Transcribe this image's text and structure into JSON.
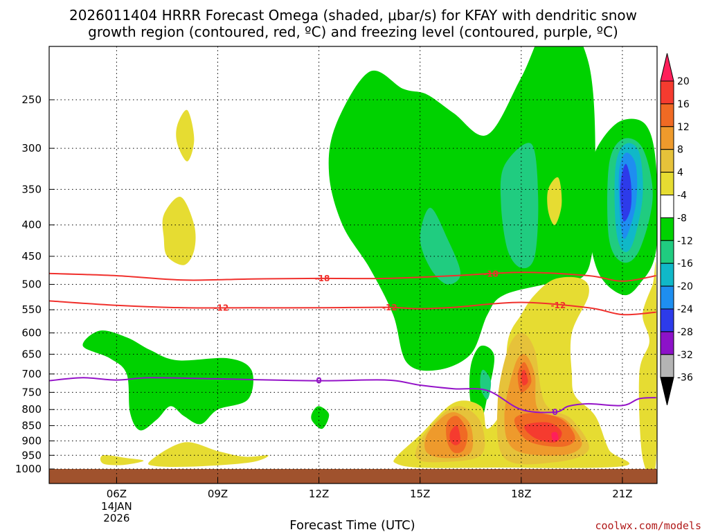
{
  "chart_data": {
    "type": "time-height contour",
    "title_lines": [
      "2026011404 HRRR Forecast Omega (shaded, μbar/s) for KFAY with dendritic snow",
      "growth region (contoured, red, ºC) and freezing level (contoured, purple, ºC)"
    ],
    "xlabel": "Forecast Time (UTC)",
    "x_ticks": [
      {
        "hour": 6,
        "label": "06Z",
        "sub": [
          "14JAN",
          "2026"
        ]
      },
      {
        "hour": 9,
        "label": "09Z"
      },
      {
        "hour": 12,
        "label": "12Z"
      },
      {
        "hour": 15,
        "label": "15Z"
      },
      {
        "hour": 18,
        "label": "18Z"
      },
      {
        "hour": 21,
        "label": "21Z"
      }
    ],
    "xlim": [
      4,
      22
    ],
    "y_ticks": [
      250,
      300,
      350,
      400,
      450,
      500,
      550,
      600,
      650,
      700,
      750,
      800,
      850,
      900,
      950,
      1000
    ],
    "ylim_hPa": [
      1015,
      200
    ],
    "grid": true,
    "colorbar": {
      "levels": [
        "20",
        "16",
        "12",
        "8",
        "4",
        "-4",
        "-8",
        "-12",
        "-16",
        "-20",
        "-24",
        "-28",
        "-32",
        "-36"
      ],
      "colors": [
        "#ff1f5a",
        "#f53b2f",
        "#f06a24",
        "#ee9a2c",
        "#e6c23a",
        "#e6dc32",
        "#ffffff",
        "#00d200",
        "#20cc80",
        "#10b8c8",
        "#1e8ef0",
        "#2d3bea",
        "#8c12c8",
        "#b4b4b4",
        "#000000"
      ]
    },
    "dgz_contours": [
      {
        "value": -18,
        "label": "-18",
        "color": "#f0302c",
        "points": [
          [
            4,
            480
          ],
          [
            6,
            484
          ],
          [
            8,
            492
          ],
          [
            10,
            490
          ],
          [
            12,
            489
          ],
          [
            14,
            489
          ],
          [
            16,
            484
          ],
          [
            18,
            478
          ],
          [
            20,
            484
          ],
          [
            21,
            494
          ],
          [
            22,
            484
          ]
        ]
      },
      {
        "value": -12,
        "label": "-12",
        "color": "#f0302c",
        "points": [
          [
            4,
            532
          ],
          [
            6,
            541
          ],
          [
            8,
            546
          ],
          [
            10,
            546
          ],
          [
            12,
            546
          ],
          [
            14,
            545
          ],
          [
            15,
            548
          ],
          [
            16,
            545
          ],
          [
            18,
            535
          ],
          [
            20,
            546
          ],
          [
            21,
            560
          ],
          [
            22,
            555
          ]
        ]
      }
    ],
    "freezing_level": {
      "value": 0,
      "label": "0",
      "color": "#9412c8",
      "points": [
        [
          4,
          718
        ],
        [
          5,
          710
        ],
        [
          6,
          716
        ],
        [
          7,
          710
        ],
        [
          9,
          713
        ],
        [
          12,
          718
        ],
        [
          14,
          716
        ],
        [
          15,
          730
        ],
        [
          16,
          740
        ],
        [
          17,
          745
        ],
        [
          18,
          800
        ],
        [
          19,
          808
        ],
        [
          19.4,
          790
        ],
        [
          20,
          783
        ],
        [
          21,
          788
        ],
        [
          21.5,
          768
        ],
        [
          22,
          765
        ]
      ]
    },
    "omega_regions": [
      {
        "color": "#00d200",
        "points": [
          [
            16,
            263
          ],
          [
            17,
            285
          ],
          [
            18,
            230
          ],
          [
            19,
            180
          ],
          [
            20,
            218
          ],
          [
            20.2,
            330
          ],
          [
            20,
            470
          ],
          [
            19,
            495
          ],
          [
            17.5,
            520
          ],
          [
            17,
            560
          ],
          [
            16.5,
            650
          ],
          [
            15.5,
            690
          ],
          [
            14.6,
            670
          ],
          [
            14.2,
            560
          ],
          [
            13.5,
            470
          ],
          [
            12.7,
            400
          ],
          [
            12.3,
            330
          ],
          [
            12.5,
            275
          ],
          [
            13.5,
            225
          ],
          [
            14.5,
            240
          ],
          [
            15.2,
            245
          ]
        ]
      },
      {
        "color": "#00d200",
        "points": [
          [
            20.4,
            290
          ],
          [
            21,
            270
          ],
          [
            21.7,
            275
          ],
          [
            22,
            320
          ],
          [
            22,
            440
          ],
          [
            21.5,
            500
          ],
          [
            21,
            520
          ],
          [
            20.3,
            480
          ],
          [
            20,
            400
          ],
          [
            20.1,
            320
          ]
        ]
      },
      {
        "color": "#00d200",
        "points": [
          [
            16.8,
            630
          ],
          [
            17.2,
            655
          ],
          [
            17.0,
            760
          ],
          [
            16.8,
            830
          ],
          [
            16.5,
            780
          ],
          [
            16.5,
            680
          ]
        ]
      },
      {
        "color": "#00d200",
        "points": [
          [
            5.0,
            630
          ],
          [
            5.5,
            595
          ],
          [
            6.3,
            610
          ],
          [
            7.0,
            640
          ],
          [
            7.8,
            665
          ],
          [
            9.3,
            660
          ],
          [
            10.0,
            690
          ],
          [
            9.9,
            770
          ],
          [
            9.0,
            800
          ],
          [
            8.5,
            845
          ],
          [
            8.0,
            820
          ],
          [
            7.6,
            790
          ],
          [
            7.2,
            830
          ],
          [
            6.7,
            865
          ],
          [
            6.4,
            810
          ],
          [
            6.3,
            700
          ],
          [
            5.8,
            660
          ]
        ]
      },
      {
        "color": "#00d200",
        "points": [
          [
            12.0,
            790
          ],
          [
            12.3,
            815
          ],
          [
            12.1,
            860
          ],
          [
            11.8,
            835
          ],
          [
            11.8,
            810
          ]
        ]
      },
      {
        "color": "#20cc80",
        "points": [
          [
            15.3,
            375
          ],
          [
            15.8,
            420
          ],
          [
            16.2,
            480
          ],
          [
            15.8,
            500
          ],
          [
            15.3,
            470
          ],
          [
            15.0,
            420
          ]
        ]
      },
      {
        "color": "#20cc80",
        "points": [
          [
            16.9,
            690
          ],
          [
            17.1,
            720
          ],
          [
            17.0,
            770
          ],
          [
            16.8,
            740
          ],
          [
            16.8,
            700
          ]
        ]
      },
      {
        "color": "#20cc80",
        "points": [
          [
            17.5,
            320
          ],
          [
            18.3,
            295
          ],
          [
            18.5,
            360
          ],
          [
            18.4,
            450
          ],
          [
            18.0,
            470
          ],
          [
            17.6,
            440
          ],
          [
            17.4,
            370
          ]
        ]
      },
      {
        "color": "#20cc80",
        "points": [
          [
            20.6,
            320
          ],
          [
            21.0,
            290
          ],
          [
            21.6,
            300
          ],
          [
            21.9,
            360
          ],
          [
            21.5,
            440
          ],
          [
            21.0,
            460
          ],
          [
            20.6,
            420
          ]
        ]
      },
      {
        "color": "#10b8c8",
        "points": [
          [
            20.8,
            320
          ],
          [
            21.1,
            295
          ],
          [
            21.5,
            305
          ],
          [
            21.6,
            360
          ],
          [
            21.3,
            430
          ],
          [
            21.0,
            440
          ],
          [
            20.8,
            400
          ]
        ]
      },
      {
        "color": "#1e8ef0",
        "points": [
          [
            20.9,
            330
          ],
          [
            21.1,
            305
          ],
          [
            21.4,
            320
          ],
          [
            21.4,
            370
          ],
          [
            21.1,
            420
          ],
          [
            20.95,
            400
          ]
        ]
      },
      {
        "color": "#2d3bea",
        "points": [
          [
            20.95,
            340
          ],
          [
            21.1,
            318
          ],
          [
            21.25,
            340
          ],
          [
            21.25,
            375
          ],
          [
            21.05,
            395
          ],
          [
            20.95,
            370
          ]
        ]
      },
      {
        "color": "#e6dc32",
        "points": [
          [
            7.8,
            275
          ],
          [
            8.1,
            260
          ],
          [
            8.3,
            290
          ],
          [
            8.1,
            315
          ],
          [
            7.8,
            295
          ]
        ]
      },
      {
        "color": "#e6dc32",
        "points": [
          [
            7.4,
            385
          ],
          [
            7.9,
            360
          ],
          [
            8.3,
            400
          ],
          [
            8.3,
            440
          ],
          [
            8.0,
            465
          ],
          [
            7.5,
            450
          ],
          [
            7.4,
            420
          ]
        ]
      },
      {
        "color": "#e6dc32",
        "points": [
          [
            18.8,
            350
          ],
          [
            19.1,
            335
          ],
          [
            19.2,
            370
          ],
          [
            19.0,
            400
          ],
          [
            18.8,
            380
          ]
        ]
      },
      {
        "color": "#e6dc32",
        "points": [
          [
            5.6,
            950
          ],
          [
            6.3,
            960
          ],
          [
            6.8,
            970
          ],
          [
            6.2,
            985
          ],
          [
            5.6,
            980
          ]
        ]
      },
      {
        "color": "#e6dc32",
        "points": [
          [
            7.0,
            970
          ],
          [
            8.0,
            905
          ],
          [
            9.0,
            935
          ],
          [
            9.8,
            955
          ],
          [
            10.5,
            950
          ],
          [
            10.0,
            975
          ],
          [
            8.5,
            990
          ],
          [
            7.2,
            990
          ]
        ]
      },
      {
        "color": "#e6dc32",
        "points": [
          [
            14.3,
            955
          ],
          [
            15.0,
            880
          ],
          [
            16.0,
            780
          ],
          [
            16.8,
            790
          ],
          [
            17.0,
            860
          ],
          [
            17.5,
            780
          ],
          [
            17.6,
            620
          ],
          [
            18.0,
            560
          ],
          [
            18.4,
            520
          ],
          [
            19.0,
            490
          ],
          [
            19.8,
            490
          ],
          [
            20.0,
            520
          ],
          [
            19.5,
            600
          ],
          [
            19.5,
            700
          ],
          [
            19.6,
            760
          ],
          [
            20.2,
            820
          ],
          [
            20.6,
            930
          ],
          [
            21.0,
            990
          ],
          [
            17.0,
            995
          ],
          [
            15.0,
            995
          ],
          [
            14.3,
            980
          ]
        ]
      },
      {
        "color": "#e6dc32",
        "points": [
          [
            21.6,
            560
          ],
          [
            21.9,
            500
          ],
          [
            22.0,
            480
          ],
          [
            22.0,
            970
          ],
          [
            21.6,
            960
          ],
          [
            21.5,
            700
          ],
          [
            21.8,
            620
          ]
        ]
      },
      {
        "color": "#e6c23a",
        "points": [
          [
            15.0,
            900
          ],
          [
            15.6,
            820
          ],
          [
            16.2,
            790
          ],
          [
            16.8,
            840
          ],
          [
            16.8,
            950
          ],
          [
            15.5,
            975
          ],
          [
            14.9,
            960
          ]
        ]
      },
      {
        "color": "#e6c23a",
        "points": [
          [
            17.3,
            780
          ],
          [
            17.6,
            640
          ],
          [
            18.0,
            600
          ],
          [
            18.4,
            640
          ],
          [
            18.7,
            780
          ],
          [
            19.5,
            830
          ],
          [
            20.0,
            930
          ],
          [
            19.0,
            975
          ],
          [
            17.5,
            960
          ]
        ]
      },
      {
        "color": "#ee9a2c",
        "points": [
          [
            15.2,
            880
          ],
          [
            15.7,
            820
          ],
          [
            16.1,
            810
          ],
          [
            16.5,
            850
          ],
          [
            16.5,
            940
          ],
          [
            15.8,
            960
          ],
          [
            15.2,
            940
          ]
        ]
      },
      {
        "color": "#ee9a2c",
        "points": [
          [
            17.5,
            820
          ],
          [
            17.8,
            680
          ],
          [
            18.1,
            650
          ],
          [
            18.4,
            700
          ],
          [
            18.5,
            800
          ],
          [
            19.3,
            830
          ],
          [
            19.8,
            910
          ],
          [
            19.2,
            950
          ],
          [
            17.8,
            930
          ]
        ]
      },
      {
        "color": "#f06a24",
        "points": [
          [
            15.8,
            840
          ],
          [
            16.1,
            820
          ],
          [
            16.4,
            870
          ],
          [
            16.3,
            930
          ],
          [
            16.0,
            940
          ],
          [
            15.8,
            900
          ]
        ]
      },
      {
        "color": "#f06a24",
        "points": [
          [
            17.9,
            700
          ],
          [
            18.1,
            670
          ],
          [
            18.3,
            720
          ],
          [
            18.0,
            750
          ]
        ]
      },
      {
        "color": "#f06a24",
        "points": [
          [
            17.8,
            830
          ],
          [
            18.4,
            810
          ],
          [
            19.2,
            830
          ],
          [
            19.6,
            890
          ],
          [
            19.2,
            920
          ],
          [
            18.2,
            900
          ]
        ]
      },
      {
        "color": "#f53b2f",
        "points": [
          [
            15.9,
            870
          ],
          [
            16.1,
            850
          ],
          [
            16.2,
            900
          ],
          [
            16.05,
            915
          ],
          [
            15.9,
            900
          ]
        ]
      },
      {
        "color": "#f53b2f",
        "points": [
          [
            18.0,
            700
          ],
          [
            18.1,
            690
          ],
          [
            18.2,
            720
          ],
          [
            18.05,
            730
          ]
        ]
      },
      {
        "color": "#f53b2f",
        "points": [
          [
            18.1,
            850
          ],
          [
            18.8,
            840
          ],
          [
            19.2,
            870
          ],
          [
            19.0,
            905
          ],
          [
            18.4,
            890
          ]
        ]
      },
      {
        "color": "#ff1f5a",
        "points": [
          [
            18.9,
            875
          ],
          [
            19.05,
            872
          ],
          [
            19.1,
            895
          ],
          [
            18.95,
            900
          ]
        ]
      }
    ]
  },
  "credit": "coolwx.com/models"
}
